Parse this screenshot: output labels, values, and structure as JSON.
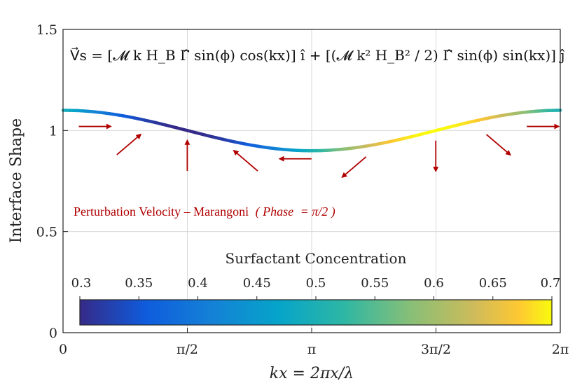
{
  "chart_data": {
    "type": "line",
    "xlabel": "kx = 2πx/λ",
    "ylabel": "Interface Shape",
    "xlim": [
      0,
      6.2832
    ],
    "ylim": [
      0,
      1.5
    ],
    "x_ticks": [
      {
        "value": 0,
        "label": "0"
      },
      {
        "value": 1.5708,
        "label": "π/2"
      },
      {
        "value": 3.1416,
        "label": "π"
      },
      {
        "value": 4.7124,
        "label": "3π/2"
      },
      {
        "value": 6.2832,
        "label": "2π"
      }
    ],
    "y_ticks": [
      {
        "value": 0,
        "label": "0"
      },
      {
        "value": 0.5,
        "label": "0.5"
      },
      {
        "value": 1,
        "label": "1"
      },
      {
        "value": 1.5,
        "label": "1.5"
      }
    ],
    "grid": true,
    "series": [
      {
        "description": "interface shape y = 1 + 0.1·cos(kx), colored by surfactant concentration c = 0.5 − 0.2·sin(kx)",
        "amplitude": 0.1,
        "mean": 1.0
      }
    ],
    "equation": "V⃗s = [𝓜 k H_B Γ̂ sin(ϕ) cos(kx)] î + [(𝓜 k² H_B² / 2) Γ̂ sin(ϕ) sin(kx)] ĵ",
    "annotation": {
      "text": "Perturbation Velocity – Marangoni",
      "phase_label": "Phase",
      "phase_value": "= π/2 )",
      "phase_open": "("
    },
    "arrows": [
      {
        "x": 0.2,
        "y": 1.02,
        "dx": 0.4,
        "dy": 0.0
      },
      {
        "x": 0.68,
        "y": 0.88,
        "dx": 0.3,
        "dy": 0.1
      },
      {
        "x": 1.57,
        "y": 0.8,
        "dx": 0.0,
        "dy": 0.15
      },
      {
        "x": 2.46,
        "y": 0.8,
        "dx": -0.3,
        "dy": 0.1
      },
      {
        "x": 3.14,
        "y": 0.86,
        "dx": -0.4,
        "dy": 0.0
      },
      {
        "x": 3.83,
        "y": 0.87,
        "dx": -0.3,
        "dy": -0.1
      },
      {
        "x": 4.71,
        "y": 0.95,
        "dx": 0.0,
        "dy": -0.15
      },
      {
        "x": 5.35,
        "y": 0.98,
        "dx": 0.3,
        "dy": -0.1
      },
      {
        "x": 5.86,
        "y": 1.02,
        "dx": 0.4,
        "dy": 0.0
      }
    ],
    "colorbar": {
      "title": "Surfactant Concentration",
      "range": [
        0.3,
        0.7
      ],
      "ticks": [
        "0.3",
        "0.35",
        "0.4",
        "0.45",
        "0.5",
        "0.55",
        "0.6",
        "0.65",
        "0.7"
      ],
      "colormap": "parula"
    }
  },
  "colors": {
    "arrow": "#b00000",
    "annotation": "#b00000",
    "grid": "#d9d9d9",
    "axis": "#222222"
  }
}
